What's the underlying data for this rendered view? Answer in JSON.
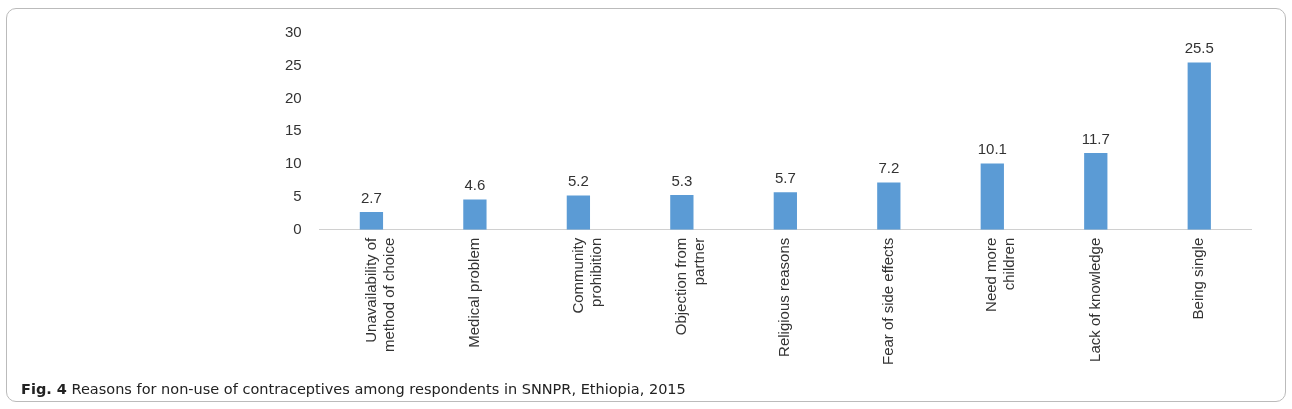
{
  "chart_data": {
    "type": "bar",
    "categories": [
      "Unavailability of\nmethod of choice",
      "Medical problem",
      "Community\nprohibition",
      "Objection from\npartner",
      "Religious reasons",
      "Fear of side effects",
      "Need more\nchildren",
      "Lack of knowledge",
      "Being single"
    ],
    "values": [
      2.7,
      4.6,
      5.2,
      5.3,
      5.7,
      7.2,
      10.1,
      11.7,
      25.5
    ],
    "color": "#5b9bd5",
    "ylim": [
      0,
      30
    ],
    "yticks": [
      0,
      5,
      10,
      15,
      20,
      25,
      30
    ],
    "grid": false,
    "data_labels": true,
    "annotations": [
      "Fig. 4 Reasons for non-use of contraceptives among respondents in SNNPR, Ethiopia, 2015"
    ]
  }
}
